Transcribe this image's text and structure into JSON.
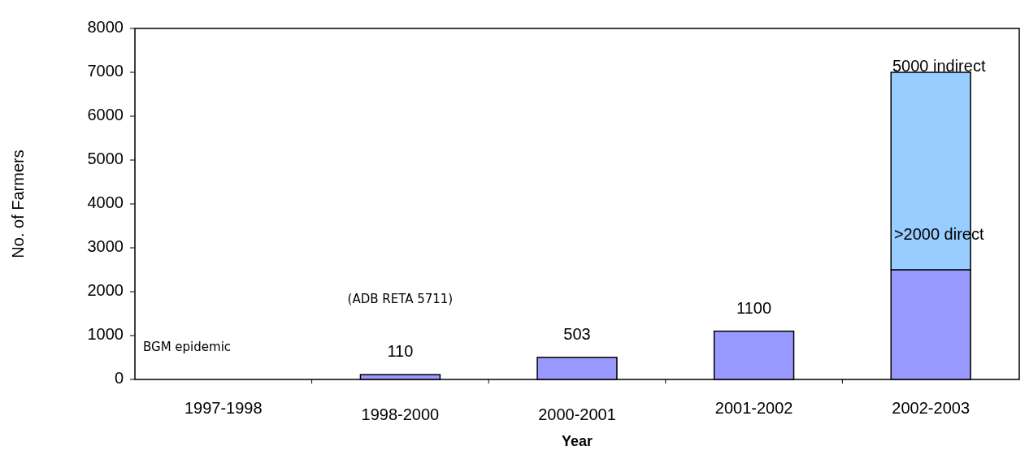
{
  "chart_data": {
    "type": "bar",
    "stacked": true,
    "xlabel": "Year",
    "ylabel": "No. of Farmers",
    "categories": [
      "1997-1998",
      "1998-2000",
      "2000-2001",
      "2001-2002",
      "2002-2003"
    ],
    "series": [
      {
        "color": "#9999ff",
        "values": [
          null,
          110,
          503,
          1100,
          2500
        ],
        "value_labels": [
          null,
          "110",
          "503",
          "1100",
          null
        ]
      },
      {
        "color": "#99ccff",
        "values": [
          null,
          null,
          null,
          null,
          4500
        ]
      }
    ],
    "ylim": [
      0,
      8000
    ],
    "yticks": [
      0,
      1000,
      2000,
      3000,
      4000,
      5000,
      6000,
      7000,
      8000
    ],
    "grid": false,
    "annotations": [
      "BGM epidemic",
      "(ADB RETA 5711)",
      ">2000 direct",
      "5000 indirect"
    ]
  }
}
